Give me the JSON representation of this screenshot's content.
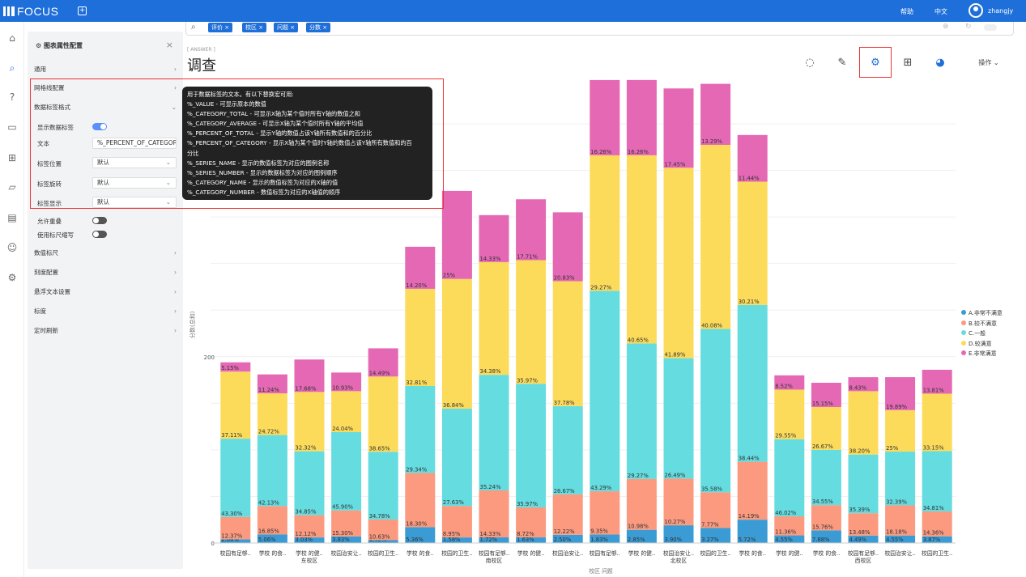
{
  "app": {
    "logo": "FOCUS",
    "help": "帮助",
    "lang": "中文",
    "user": "zhangjy"
  },
  "search": {
    "chips": [
      "评价",
      "校区",
      "问题",
      "分数"
    ]
  },
  "page": {
    "title": "调查",
    "subtitle": "[ ANSWER ]",
    "operate": "操作"
  },
  "panel": {
    "title": "图表属性配置",
    "sections": {
      "general": "通用",
      "grid": "网格线配置",
      "data_label": "数据标签格式",
      "data_ruler": "数值标尺",
      "tick": "刻度配置",
      "hover": "悬浮文本设置",
      "scale": "标度",
      "timer": "定时刷新"
    },
    "show_label": "显示数据标签",
    "text": "文本",
    "text_value": "%_PERCENT_OF_CATEGORY",
    "position": "标签位置",
    "position_value": "默认",
    "rotate": "标签旋转",
    "rotate_value": "默认",
    "display": "标签显示",
    "display_value": "默认",
    "overlap": "允许重叠",
    "abbr": "使用标尺缩写"
  },
  "tooltip": {
    "lines": [
      "用于数据标签的文本。有以下替换宏可用:",
      "%_VALUE - 可显示原本的数值",
      "%_CATEGORY_TOTAL - 可显示X轴为某个值时所有Y轴的数值之和",
      "%_CATEGORY_AVERAGE - 可显示X轴为某个值时所有Y轴的平均值",
      "%_PERCENT_OF_TOTAL - 显示Y轴的数值占该Y轴所有数值和的百分比",
      "%_PERCENT_OF_CATEGORY - 显示X轴为某个值时Y轴的数值占该Y轴所有数值和的百",
      "分比",
      "%_SERIES_NAME - 显示的数值标签为对应的图例名称",
      "%_SERIES_NUMBER - 显示的数据标签为对应的图例顺序",
      "%_CATEGORY_NAME - 显示的数值标签为对应的X轴的值",
      "%_CATEGORY_NUMBER - 数值标签为对应的X轴值的顺序"
    ]
  },
  "chart_data": {
    "type": "bar",
    "stacked": true,
    "ylabel": "分数(总和)",
    "xlabel": "校区 问题",
    "ylim": [
      0,
      470
    ],
    "yticks": [
      0,
      200,
      400
    ],
    "groups": [
      {
        "name": "东校区",
        "count": 5
      },
      {
        "name": "南校区",
        "count": 5
      },
      {
        "name": "北校区",
        "count": 5
      },
      {
        "name": "西校区",
        "count": 5
      }
    ],
    "categories": [
      "校园有足够..",
      "学校 的食..",
      "学校 的健..",
      "校园治安让..",
      "校园的卫生..",
      "学校 的食..",
      "校园的卫生..",
      "校园有足够..",
      "学校 的健..",
      "校园治安让..",
      "校园有足够..",
      "学校 的健..",
      "校园治安让..",
      "校园的卫生..",
      "学校 的食..",
      "学校 的健..",
      "学校 的食..",
      "校园有足够..",
      "校园治安让..",
      "校园的卫生.."
    ],
    "totals": [
      194,
      181,
      197,
      183,
      209,
      318,
      378,
      352,
      369,
      355,
      497,
      497,
      488,
      493,
      438,
      180,
      172,
      178,
      178,
      186
    ],
    "series": [
      {
        "name": "A.非常不满意",
        "color": "#3a9bd5",
        "pct": [
          2.06,
          5.06,
          3.03,
          3.83,
          1.45,
          5.36,
          1.58,
          1.72,
          1.63,
          2.5,
          1.83,
          2.85,
          3.9,
          3.27,
          5.72,
          4.55,
          7.88,
          4.49,
          4.55,
          3.87
        ]
      },
      {
        "name": "B.较不满意",
        "color": "#fb9a7f",
        "pct": [
          12.37,
          16.85,
          12.12,
          15.3,
          10.63,
          18.3,
          8.95,
          14.33,
          8.72,
          12.22,
          9.35,
          10.98,
          10.27,
          7.77,
          14.19,
          11.36,
          15.76,
          13.48,
          18.18,
          14.36
        ]
      },
      {
        "name": "C.一般",
        "color": "#64dce0",
        "pct": [
          43.3,
          42.13,
          34.85,
          45.9,
          34.78,
          29.34,
          27.63,
          35.24,
          35.97,
          26.67,
          43.29,
          29.27,
          26.49,
          35.58,
          38.44,
          46.02,
          34.55,
          35.39,
          32.39,
          34.81
        ]
      },
      {
        "name": "D.较满意",
        "color": "#fddb5a",
        "pct": [
          37.11,
          24.72,
          32.32,
          24.04,
          38.65,
          32.81,
          36.84,
          34.38,
          35.97,
          37.78,
          29.27,
          40.65,
          41.89,
          40.08,
          30.21,
          29.55,
          26.67,
          38.2,
          25,
          33.15
        ]
      },
      {
        "name": "E.非常满意",
        "color": "#e468b4",
        "pct": [
          5.15,
          11.24,
          17.68,
          10.93,
          14.49,
          14.2,
          25,
          14.33,
          17.71,
          20.83,
          16.26,
          16.26,
          17.45,
          13.29,
          11.44,
          8.52,
          15.15,
          8.43,
          19.89,
          13.81
        ]
      }
    ]
  }
}
